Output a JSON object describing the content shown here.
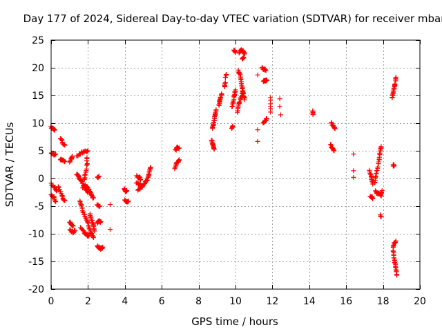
{
  "chart_data": {
    "type": "scatter",
    "title": "Day 177 of 2024, Sidereal Day-to-day VTEC variation (SDTVAR) for receiver mbar",
    "xlabel": "GPS time / hours",
    "ylabel": "SDTVAR / TECUs",
    "xlim": [
      0,
      20
    ],
    "ylim": [
      -20,
      25
    ],
    "xticks": [
      0,
      2,
      4,
      6,
      8,
      10,
      12,
      14,
      16,
      18,
      20
    ],
    "yticks": [
      -20,
      -15,
      -10,
      -5,
      0,
      5,
      10,
      15,
      20,
      25
    ],
    "grid": true,
    "marker": "+",
    "color": "#ff0000",
    "series": [
      {
        "name": "SDTVAR",
        "segments": [
          [
            [
              0.0,
              9.2
            ],
            [
              0.1,
              9.0
            ],
            [
              0.2,
              8.8
            ]
          ],
          [
            [
              0.0,
              4.5
            ],
            [
              0.15,
              4.3
            ],
            [
              0.25,
              4.4
            ]
          ],
          [
            [
              0.0,
              -1.0
            ],
            [
              0.2,
              -1.6
            ],
            [
              0.3,
              -2.2
            ],
            [
              0.3,
              -2.0
            ]
          ],
          [
            [
              0.0,
              -3.0
            ],
            [
              0.15,
              -3.4
            ],
            [
              0.25,
              -4.2
            ]
          ],
          [
            [
              0.5,
              7.3
            ],
            [
              0.6,
              6.6
            ],
            [
              0.75,
              6.0
            ]
          ],
          [
            [
              0.5,
              3.5
            ],
            [
              0.6,
              3.2
            ],
            [
              0.75,
              3.1
            ]
          ],
          [
            [
              0.4,
              -1.5
            ],
            [
              0.55,
              -2.8
            ],
            [
              0.65,
              -3.8
            ],
            [
              0.75,
              -4.0
            ]
          ],
          [
            [
              1.0,
              3.0
            ],
            [
              1.1,
              3.6
            ],
            [
              1.15,
              4.0
            ]
          ],
          [
            [
              1.0,
              -7.8
            ],
            [
              1.1,
              -8.3
            ],
            [
              1.2,
              -8.6
            ]
          ],
          [
            [
              1.0,
              -9.4
            ],
            [
              1.2,
              -9.7
            ],
            [
              1.3,
              -9.4
            ]
          ],
          [
            [
              1.4,
              4.0
            ],
            [
              1.6,
              4.5
            ],
            [
              1.8,
              4.9
            ],
            [
              2.0,
              5.0
            ]
          ],
          [
            [
              1.4,
              0.9
            ],
            [
              1.5,
              0.2
            ],
            [
              1.6,
              -0.4
            ],
            [
              1.75,
              -1.2
            ],
            [
              1.9,
              -2.0
            ],
            [
              2.0,
              -2.6
            ]
          ],
          [
            [
              1.55,
              -4.0
            ],
            [
              1.65,
              -5.0
            ],
            [
              1.75,
              -6.2
            ],
            [
              1.9,
              -7.2
            ],
            [
              2.0,
              -8.2
            ],
            [
              2.1,
              -9.2
            ],
            [
              2.2,
              -10.2
            ],
            [
              2.3,
              -10.7
            ]
          ],
          [
            [
              1.7,
              -1.6
            ],
            [
              1.85,
              -1.3
            ],
            [
              2.0,
              -1.6
            ],
            [
              2.1,
              -2.5
            ],
            [
              2.2,
              -3.0
            ],
            [
              2.3,
              -3.5
            ]
          ],
          [
            [
              1.95,
              3.8
            ],
            [
              1.95,
              2.6
            ],
            [
              1.85,
              0.8
            ],
            [
              1.8,
              -0.2
            ]
          ],
          [
            [
              1.6,
              -9.0
            ],
            [
              1.8,
              -9.8
            ],
            [
              1.95,
              -10.2
            ],
            [
              2.05,
              -10.4
            ]
          ],
          [
            [
              2.1,
              -6.5
            ],
            [
              2.2,
              -7.5
            ],
            [
              2.3,
              -8.5
            ],
            [
              2.35,
              -9.5
            ]
          ],
          [
            [
              2.5,
              0.2
            ],
            [
              2.6,
              0.4
            ]
          ],
          [
            [
              2.5,
              -4.8
            ],
            [
              2.65,
              -5.0
            ]
          ],
          [
            [
              2.5,
              -8.0
            ],
            [
              2.6,
              -7.7
            ],
            [
              2.7,
              -7.8
            ]
          ],
          [
            [
              2.5,
              -12.3
            ],
            [
              2.6,
              -12.5
            ],
            [
              2.7,
              -12.7
            ],
            [
              2.8,
              -12.4
            ]
          ],
          [
            [
              3.2,
              -4.7
            ]
          ],
          [
            [
              3.2,
              -9.2
            ]
          ],
          [
            [
              3.95,
              -1.9
            ],
            [
              4.05,
              -2.4
            ],
            [
              4.1,
              -2.2
            ]
          ],
          [
            [
              4.0,
              -3.8
            ],
            [
              4.1,
              -4.4
            ],
            [
              4.2,
              -4.1
            ]
          ],
          [
            [
              4.65,
              0.4
            ],
            [
              4.8,
              0.2
            ],
            [
              4.85,
              -0.2
            ]
          ],
          [
            [
              4.6,
              -0.8
            ],
            [
              4.8,
              -1.0
            ],
            [
              4.9,
              -1.6
            ]
          ],
          [
            [
              4.7,
              -2.2
            ],
            [
              4.9,
              -1.6
            ],
            [
              5.05,
              -0.9
            ],
            [
              5.2,
              -0.3
            ],
            [
              5.3,
              0.6
            ],
            [
              5.35,
              1.5
            ],
            [
              5.4,
              2.0
            ]
          ],
          [
            [
              6.7,
              1.8
            ],
            [
              6.8,
              2.6
            ],
            [
              6.9,
              3.1
            ],
            [
              6.95,
              3.4
            ]
          ],
          [
            [
              6.75,
              5.2
            ],
            [
              6.85,
              5.6
            ],
            [
              6.95,
              5.5
            ]
          ],
          [
            [
              8.7,
              7.0
            ],
            [
              8.75,
              6.4
            ],
            [
              8.8,
              5.9
            ],
            [
              8.85,
              5.3
            ]
          ],
          [
            [
              8.75,
              9.0
            ],
            [
              8.8,
              9.8
            ],
            [
              8.85,
              10.6
            ],
            [
              8.9,
              11.6
            ],
            [
              8.95,
              12.4
            ]
          ],
          [
            [
              9.1,
              13.2
            ],
            [
              9.15,
              14.0
            ],
            [
              9.2,
              14.7
            ],
            [
              9.25,
              15.3
            ]
          ],
          [
            [
              9.4,
              16.6
            ],
            [
              9.45,
              17.3
            ]
          ],
          [
            [
              9.45,
              18.3
            ],
            [
              9.5,
              18.8
            ]
          ],
          [
            [
              9.8,
              9.0
            ],
            [
              9.85,
              9.5
            ]
          ],
          [
            [
              9.8,
              13.0
            ],
            [
              9.9,
              14.0
            ],
            [
              9.95,
              15.2
            ],
            [
              10.0,
              16.0
            ]
          ],
          [
            [
              9.9,
              23.3
            ],
            [
              10.0,
              22.8
            ]
          ],
          [
            [
              10.1,
              11.8
            ],
            [
              10.15,
              13.2
            ],
            [
              10.25,
              14.2
            ],
            [
              10.35,
              15.0
            ],
            [
              10.4,
              15.5
            ]
          ],
          [
            [
              10.15,
              19.5
            ],
            [
              10.25,
              18.6
            ],
            [
              10.3,
              17.6
            ],
            [
              10.35,
              16.6
            ],
            [
              10.4,
              15.8
            ],
            [
              10.45,
              15.0
            ],
            [
              10.5,
              14.2
            ]
          ],
          [
            [
              10.2,
              22.8
            ],
            [
              10.3,
              23.2
            ],
            [
              10.4,
              23.0
            ],
            [
              10.5,
              22.5
            ]
          ],
          [
            [
              10.35,
              21.5
            ],
            [
              10.45,
              21.8
            ]
          ],
          [
            [
              11.2,
              18.7
            ]
          ],
          [
            [
              11.2,
              8.8
            ]
          ],
          [
            [
              11.2,
              6.7
            ]
          ],
          [
            [
              11.45,
              20.0
            ],
            [
              11.55,
              19.8
            ],
            [
              11.65,
              19.5
            ]
          ],
          [
            [
              11.5,
              17.5
            ],
            [
              11.6,
              17.8
            ],
            [
              11.7,
              17.7
            ]
          ],
          [
            [
              11.5,
              10.0
            ],
            [
              11.6,
              10.4
            ],
            [
              11.7,
              10.8
            ]
          ],
          [
            [
              11.9,
              14.6
            ],
            [
              11.9,
              12.0
            ]
          ],
          [
            [
              12.4,
              14.4
            ]
          ],
          [
            [
              12.4,
              13.0
            ]
          ],
          [
            [
              12.45,
              11.5
            ]
          ],
          [
            [
              14.2,
              12.1
            ],
            [
              14.2,
              11.6
            ]
          ],
          [
            [
              15.2,
              10.0
            ],
            [
              15.3,
              9.5
            ],
            [
              15.4,
              9.0
            ]
          ],
          [
            [
              15.15,
              6.0
            ],
            [
              15.25,
              5.4
            ],
            [
              15.35,
              5.0
            ]
          ],
          [
            [
              16.4,
              4.4
            ]
          ],
          [
            [
              16.4,
              1.4
            ]
          ],
          [
            [
              16.4,
              0.2
            ]
          ],
          [
            [
              17.25,
              1.3
            ],
            [
              17.35,
              0.5
            ],
            [
              17.4,
              -0.2
            ],
            [
              17.45,
              -1.0
            ]
          ],
          [
            [
              17.3,
              -3.2
            ],
            [
              17.4,
              -3.4
            ],
            [
              17.45,
              -3.6
            ]
          ],
          [
            [
              17.55,
              -0.8
            ],
            [
              17.6,
              0.5
            ],
            [
              17.7,
              1.8
            ],
            [
              17.8,
              3.6
            ],
            [
              17.85,
              5.0
            ],
            [
              17.9,
              5.8
            ]
          ],
          [
            [
              17.6,
              -2.4
            ],
            [
              17.7,
              -2.8
            ],
            [
              17.8,
              -2.7
            ],
            [
              17.9,
              -3.0
            ],
            [
              17.95,
              -2.2
            ]
          ],
          [
            [
              17.85,
              -6.7
            ],
            [
              17.9,
              -6.9
            ]
          ],
          [
            [
              18.5,
              14.6
            ],
            [
              18.55,
              15.5
            ],
            [
              18.6,
              16.3
            ],
            [
              18.65,
              17.0
            ],
            [
              18.7,
              18.3
            ]
          ],
          [
            [
              18.55,
              2.4
            ],
            [
              18.6,
              2.3
            ]
          ],
          [
            [
              18.55,
              -12.5
            ],
            [
              18.6,
              -11.8
            ],
            [
              18.7,
              -11.3
            ]
          ],
          [
            [
              18.55,
              -13.0
            ],
            [
              18.6,
              -14.2
            ],
            [
              18.65,
              -15.3
            ],
            [
              18.7,
              -16.2
            ],
            [
              18.75,
              -17.5
            ]
          ]
        ]
      }
    ]
  }
}
